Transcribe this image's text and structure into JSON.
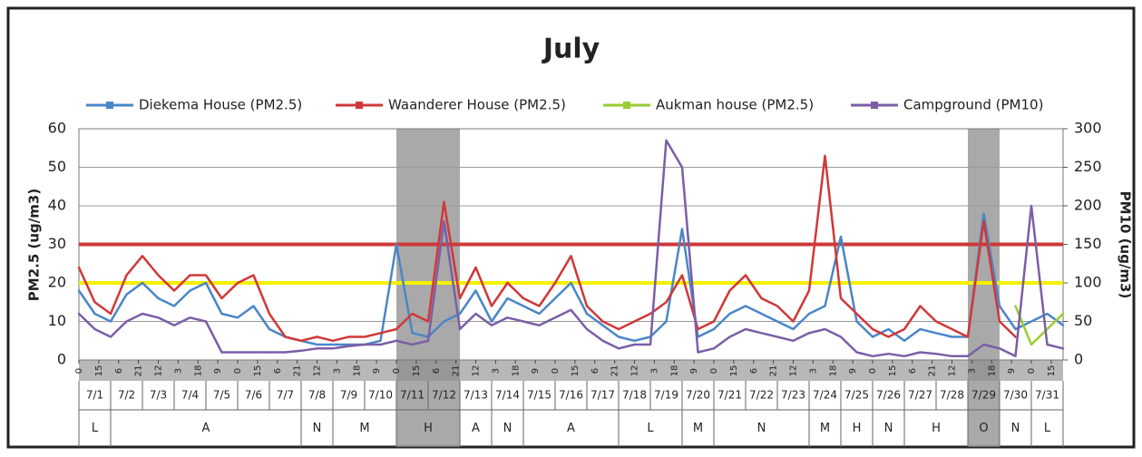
{
  "chart_data": {
    "type": "line",
    "title": "July",
    "y_label": "PM2.5 (ug/m3)",
    "y2_label": "PM10 (ug/m3)",
    "x": [
      0,
      12,
      24,
      36,
      48,
      60,
      72,
      84,
      96,
      108,
      120,
      132,
      144,
      156,
      168,
      180,
      192,
      204,
      216,
      228,
      240,
      252,
      264,
      276,
      288,
      300,
      312,
      324,
      336,
      348,
      360,
      372,
      384,
      396,
      408,
      420,
      432,
      444,
      456,
      468,
      480,
      492,
      504,
      516,
      528,
      540,
      552,
      564,
      576,
      588,
      600,
      612,
      624,
      636,
      648,
      660,
      672,
      684,
      696,
      708,
      720,
      732,
      744
    ],
    "xlim": [
      0,
      744
    ],
    "xticks": [
      0,
      15,
      {
        "value": 30,
        "label": "6"
      },
      {
        "value": 45,
        "label": "21"
      },
      {
        "value": 60,
        "label": "12"
      },
      {
        "value": 75,
        "label": "3"
      },
      {
        "value": 90,
        "label": "18"
      },
      {
        "value": 105,
        "label": "9"
      },
      {
        "value": 120,
        "label": "0"
      },
      {
        "value": 135,
        "label": "15"
      },
      {
        "value": 150,
        "label": "6"
      },
      {
        "value": 165,
        "label": "21"
      },
      {
        "value": 180,
        "label": "12"
      },
      {
        "value": 195,
        "label": "3"
      },
      {
        "value": 210,
        "label": "18"
      },
      {
        "value": 225,
        "label": "9"
      },
      {
        "value": 240,
        "label": "0"
      },
      {
        "value": 255,
        "label": "15"
      },
      {
        "value": 270,
        "label": "6"
      },
      {
        "value": 285,
        "label": "21"
      },
      {
        "value": 300,
        "label": "12"
      },
      {
        "value": 315,
        "label": "3"
      },
      {
        "value": 330,
        "label": "18"
      },
      {
        "value": 345,
        "label": "9"
      },
      {
        "value": 360,
        "label": "0"
      },
      {
        "value": 375,
        "label": "15"
      },
      {
        "value": 390,
        "label": "6"
      },
      {
        "value": 405,
        "label": "21"
      },
      {
        "value": 420,
        "label": "12"
      },
      {
        "value": 435,
        "label": "3"
      },
      {
        "value": 450,
        "label": "18"
      },
      {
        "value": 465,
        "label": "9"
      },
      {
        "value": 480,
        "label": "0"
      },
      {
        "value": 495,
        "label": "15"
      },
      {
        "value": 510,
        "label": "6"
      },
      {
        "value": 525,
        "label": "21"
      },
      {
        "value": 540,
        "label": "12"
      },
      {
        "value": 555,
        "label": "3"
      },
      {
        "value": 570,
        "label": "18"
      },
      {
        "value": 585,
        "label": "9"
      },
      {
        "value": 600,
        "label": "0"
      },
      {
        "value": 615,
        "label": "15"
      },
      {
        "value": 630,
        "label": "6"
      },
      {
        "value": 645,
        "label": "21"
      },
      {
        "value": 660,
        "label": "12"
      },
      {
        "value": 675,
        "label": "3"
      },
      {
        "value": 690,
        "label": "18"
      },
      {
        "value": 705,
        "label": "9"
      },
      {
        "value": 720,
        "label": "0"
      },
      {
        "value": 735,
        "label": "15"
      }
    ],
    "days": [
      "7/1",
      "7/2",
      "7/3",
      "7/4",
      "7/5",
      "7/6",
      "7/7",
      "7/8",
      "7/9",
      "7/10",
      "7/11",
      "7/12",
      "7/13",
      "7/14",
      "7/15",
      "7/16",
      "7/17",
      "7/18",
      "7/19",
      "7/20",
      "7/21",
      "7/22",
      "7/23",
      "7/24",
      "7/25",
      "7/26",
      "7/27",
      "7/28",
      "7/29",
      "7/30",
      "7/31"
    ],
    "regimes": [
      {
        "label": "L",
        "start_day": 1,
        "end_day": 1
      },
      {
        "label": "A",
        "start_day": 2,
        "end_day": 7
      },
      {
        "label": "N",
        "start_day": 8,
        "end_day": 8
      },
      {
        "label": "M",
        "start_day": 9,
        "end_day": 10
      },
      {
        "label": "H",
        "start_day": 11,
        "end_day": 12
      },
      {
        "label": "A",
        "start_day": 13,
        "end_day": 13
      },
      {
        "label": "N",
        "start_day": 14,
        "end_day": 14
      },
      {
        "label": "A",
        "start_day": 15,
        "end_day": 17
      },
      {
        "label": "L",
        "start_day": 18,
        "end_day": 19
      },
      {
        "label": "M",
        "start_day": 20,
        "end_day": 20
      },
      {
        "label": "N",
        "start_day": 21,
        "end_day": 23
      },
      {
        "label": "M",
        "start_day": 24,
        "end_day": 24
      },
      {
        "label": "H",
        "start_day": 25,
        "end_day": 25
      },
      {
        "label": "N",
        "start_day": 26,
        "end_day": 26
      },
      {
        "label": "H",
        "start_day": 27,
        "end_day": 28
      },
      {
        "label": "O",
        "start_day": 29,
        "end_day": 29
      },
      {
        "label": "N",
        "start_day": 30,
        "end_day": 30
      },
      {
        "label": "L",
        "start_day": 31,
        "end_day": 31
      }
    ],
    "shaded": [
      {
        "from": 240,
        "to": 288
      },
      {
        "from": 672,
        "to": 696
      }
    ],
    "reference_lines": [
      {
        "value": 30,
        "color": "#d03838"
      },
      {
        "value": 20,
        "color": "#f5f000"
      }
    ],
    "ylim": [
      0,
      60
    ],
    "yticks": [
      0,
      10,
      20,
      30,
      40,
      50,
      60
    ],
    "y2lim": [
      0,
      300
    ],
    "y2ticks": [
      0,
      50,
      100,
      150,
      200,
      250,
      300
    ],
    "grid": true,
    "series": [
      {
        "name": "Diekema House (PM2.5)",
        "color": "#4a86c8",
        "values": [
          18,
          12,
          10,
          17,
          20,
          16,
          14,
          18,
          20,
          12,
          11,
          14,
          8,
          6,
          5,
          4,
          4,
          4,
          4,
          5,
          30,
          7,
          6,
          10,
          12,
          18,
          10,
          16,
          14,
          12,
          16,
          20,
          12,
          9,
          6,
          5,
          6,
          10,
          34,
          6,
          8,
          12,
          14,
          12,
          10,
          8,
          12,
          14,
          32,
          10,
          6,
          8,
          5,
          8,
          7,
          6,
          6,
          38,
          14,
          8,
          10,
          12,
          9
        ]
      },
      {
        "name": "Waanderer House (PM2.5)",
        "color": "#d03838",
        "values": [
          24,
          15,
          12,
          22,
          27,
          22,
          18,
          22,
          22,
          16,
          20,
          22,
          12,
          6,
          5,
          6,
          5,
          6,
          6,
          7,
          8,
          12,
          10,
          41,
          16,
          24,
          14,
          20,
          16,
          14,
          20,
          27,
          14,
          10,
          8,
          10,
          12,
          15,
          22,
          8,
          10,
          18,
          22,
          16,
          14,
          10,
          18,
          53,
          16,
          12,
          8,
          6,
          8,
          14,
          10,
          8,
          6,
          36,
          10,
          6,
          null,
          null,
          null
        ]
      },
      {
        "name": "Aukman house (PM2.5)",
        "color": "#9acd32",
        "values": [
          null,
          null,
          null,
          null,
          null,
          null,
          null,
          null,
          null,
          null,
          null,
          null,
          null,
          null,
          null,
          null,
          null,
          null,
          null,
          null,
          null,
          null,
          null,
          null,
          null,
          null,
          null,
          null,
          null,
          null,
          null,
          null,
          null,
          null,
          null,
          null,
          null,
          null,
          null,
          null,
          null,
          null,
          null,
          null,
          null,
          null,
          null,
          null,
          null,
          null,
          null,
          null,
          null,
          null,
          null,
          null,
          null,
          null,
          null,
          14,
          4,
          8,
          12
        ]
      },
      {
        "name": "Campground (PM10)",
        "color": "#7b5ea7",
        "axis": "y2",
        "values": [
          60,
          40,
          30,
          50,
          60,
          55,
          45,
          55,
          50,
          10,
          10,
          10,
          10,
          10,
          12,
          15,
          15,
          18,
          20,
          20,
          25,
          20,
          25,
          180,
          40,
          60,
          45,
          55,
          50,
          45,
          55,
          65,
          40,
          25,
          15,
          20,
          20,
          285,
          250,
          10,
          15,
          30,
          40,
          35,
          30,
          25,
          35,
          40,
          30,
          10,
          5,
          8,
          5,
          10,
          8,
          5,
          5,
          20,
          15,
          5,
          200,
          20,
          15
        ]
      }
    ]
  }
}
